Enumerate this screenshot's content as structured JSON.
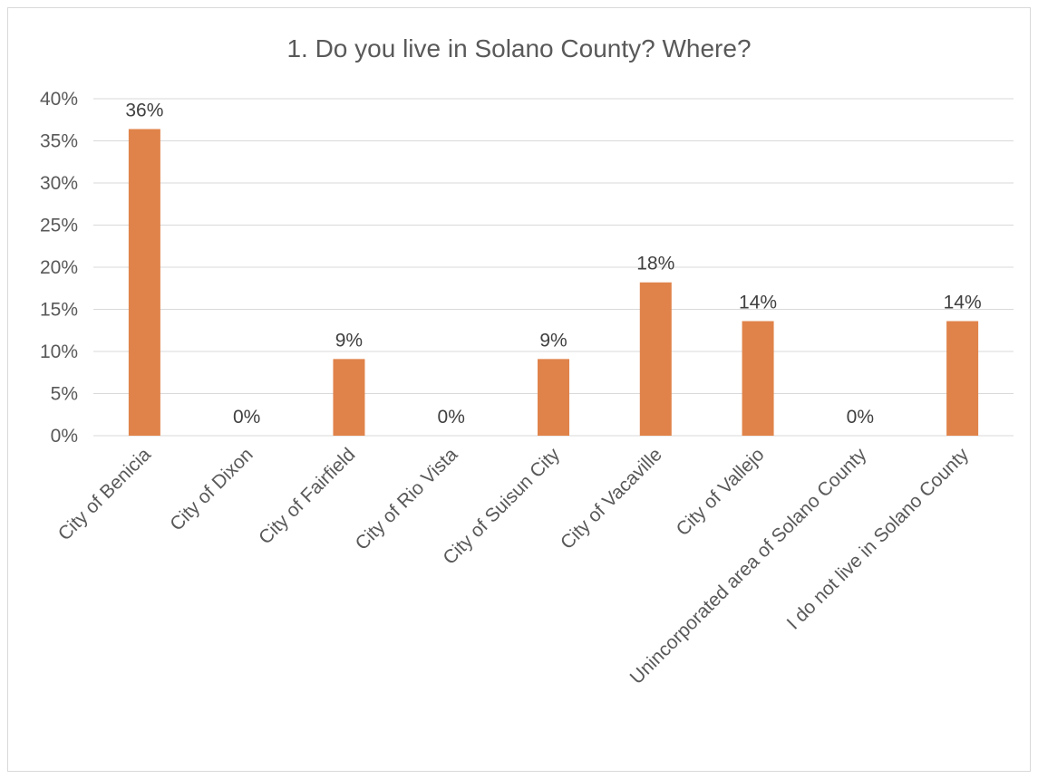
{
  "chart_data": {
    "type": "bar",
    "title": "1. Do you live in Solano County? Where?",
    "categories": [
      "City of Benicia",
      "City of Dixon",
      "City of Fairfield",
      "City of Rio Vista",
      "City of Suisun City",
      "City of Vacaville",
      "City of Vallejo",
      "Unincorporated area of Solano County",
      "I do not live in Solano County"
    ],
    "values": [
      36.4,
      0,
      9.1,
      0,
      9.1,
      18.2,
      13.6,
      0,
      13.6
    ],
    "data_labels": [
      "36%",
      "0%",
      "9%",
      "0%",
      "9%",
      "18%",
      "14%",
      "0%",
      "14%"
    ],
    "ylim": [
      0,
      40
    ],
    "yticks": [
      0,
      5,
      10,
      15,
      20,
      25,
      30,
      35,
      40
    ],
    "ytick_labels": [
      "0%",
      "5%",
      "10%",
      "15%",
      "20%",
      "25%",
      "30%",
      "35%",
      "40%"
    ],
    "xlabel": "",
    "ylabel": "",
    "grid": true,
    "legend": "none",
    "colors": {
      "bar": "#e0834a",
      "grid": "#d9d9d9",
      "text": "#595959"
    }
  }
}
